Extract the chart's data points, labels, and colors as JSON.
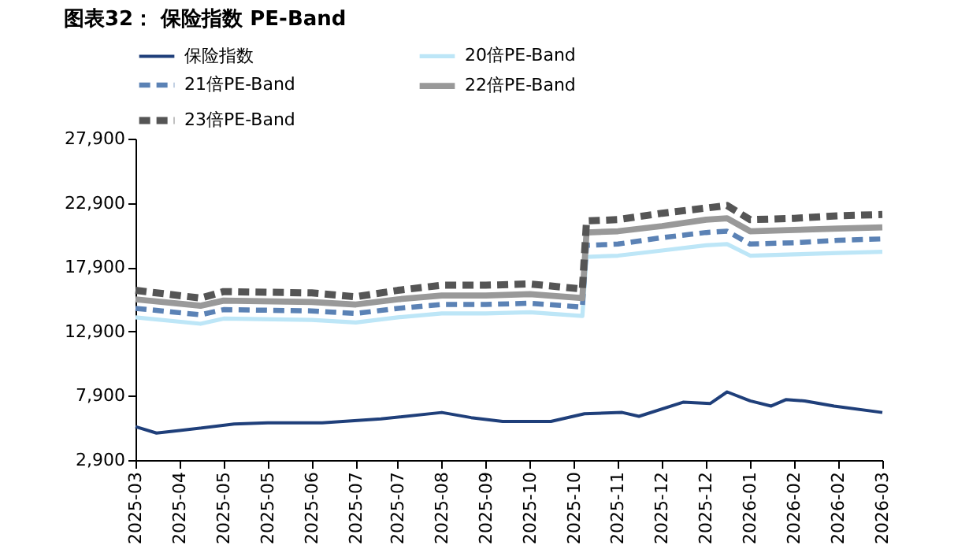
{
  "chart_data": {
    "type": "line",
    "title": "图表32： 保险指数 PE-Band",
    "xlim": [
      "2025-03-28",
      "2026-03-19"
    ],
    "xticks": [
      {
        "value": "2025-03-28",
        "label": "2025-03"
      },
      {
        "value": "2025-04-18",
        "label": "2025-04"
      },
      {
        "value": "2025-05-09",
        "label": "2025-05"
      },
      {
        "value": "2025-05-30",
        "label": "2025-05"
      },
      {
        "value": "2025-06-20",
        "label": "2025-06"
      },
      {
        "value": "2025-07-11",
        "label": "2025-07"
      },
      {
        "value": "2025-07-31",
        "label": "2025-07"
      },
      {
        "value": "2025-08-21",
        "label": "2025-08"
      },
      {
        "value": "2025-09-11",
        "label": "2025-09"
      },
      {
        "value": "2025-10-02",
        "label": "2025-10"
      },
      {
        "value": "2025-10-23",
        "label": "2025-10"
      },
      {
        "value": "2025-11-13",
        "label": "2025-11"
      },
      {
        "value": "2025-12-04",
        "label": "2025-12"
      },
      {
        "value": "2025-12-25",
        "label": "2025-12"
      },
      {
        "value": "2026-01-15",
        "label": "2026-01"
      },
      {
        "value": "2026-02-05",
        "label": "2026-02"
      },
      {
        "value": "2026-02-26",
        "label": "2026-02"
      },
      {
        "value": "2026-03-19",
        "label": "2026-03"
      }
    ],
    "ylim": [
      2900,
      27900
    ],
    "yticks": [
      {
        "value": 2900,
        "label": "2,900"
      },
      {
        "value": 7900,
        "label": "7,900"
      },
      {
        "value": 12900,
        "label": "12,900"
      },
      {
        "value": 17900,
        "label": "17,900"
      },
      {
        "value": 22900,
        "label": "22,900"
      },
      {
        "value": 27900,
        "label": "27,900"
      }
    ],
    "grid": false,
    "legend": "top",
    "marker": "none",
    "series": [
      {
        "name": "保险指数",
        "color": "#1f3f7a",
        "line_style": "solid",
        "x": [
          "2025-03-28",
          "2025-04-07",
          "2025-04-18",
          "2025-05-14",
          "2025-05-30",
          "2025-06-25",
          "2025-07-23",
          "2025-08-21",
          "2025-09-04",
          "2025-09-19",
          "2025-10-12",
          "2025-10-28",
          "2025-11-15",
          "2025-11-23",
          "2025-12-14",
          "2025-12-27",
          "2026-01-04",
          "2026-01-15",
          "2026-01-25",
          "2026-02-01",
          "2026-02-10",
          "2026-02-24",
          "2026-03-19"
        ],
        "values": [
          5500,
          5000,
          5200,
          5700,
          5800,
          5800,
          6100,
          6600,
          6200,
          5900,
          5900,
          6500,
          6600,
          6300,
          7400,
          7300,
          8200,
          7500,
          7100,
          7600,
          7500,
          7100,
          6600
        ]
      },
      {
        "name": "20倍PE-Band",
        "color": "#bde6f7",
        "line_style": "solid",
        "x": [
          "2025-03-28",
          "2025-04-28",
          "2025-05-09",
          "2025-06-20",
          "2025-07-11",
          "2025-07-31",
          "2025-08-21",
          "2025-09-11",
          "2025-10-02",
          "2025-10-27",
          "2025-10-29",
          "2025-11-13",
          "2025-12-04",
          "2025-12-25",
          "2026-01-04",
          "2026-01-15",
          "2026-02-05",
          "2026-02-26",
          "2026-03-19"
        ],
        "values": [
          14000,
          13500,
          13900,
          13800,
          13600,
          14000,
          14300,
          14300,
          14400,
          14100,
          18700,
          18800,
          19200,
          19600,
          19700,
          18800,
          18900,
          19000,
          19100
        ]
      },
      {
        "name": "21倍PE-Band",
        "color": "#5b82b5",
        "line_style": "dashed",
        "x": [
          "2025-03-28",
          "2025-04-28",
          "2025-05-09",
          "2025-06-20",
          "2025-07-11",
          "2025-07-31",
          "2025-08-21",
          "2025-09-11",
          "2025-10-02",
          "2025-10-27",
          "2025-10-29",
          "2025-11-13",
          "2025-12-04",
          "2025-12-25",
          "2026-01-04",
          "2026-01-15",
          "2026-02-05",
          "2026-02-26",
          "2026-03-19"
        ],
        "values": [
          14700,
          14200,
          14600,
          14500,
          14300,
          14700,
          15000,
          15000,
          15100,
          14800,
          19600,
          19700,
          20200,
          20600,
          20700,
          19700,
          19800,
          20000,
          20100
        ]
      },
      {
        "name": "22倍PE-Band",
        "color": "#999999",
        "line_style": "solid",
        "x": [
          "2025-03-28",
          "2025-04-28",
          "2025-05-09",
          "2025-06-20",
          "2025-07-11",
          "2025-07-31",
          "2025-08-21",
          "2025-09-11",
          "2025-10-02",
          "2025-10-27",
          "2025-10-29",
          "2025-11-13",
          "2025-12-04",
          "2025-12-25",
          "2026-01-04",
          "2026-01-15",
          "2026-02-05",
          "2026-02-26",
          "2026-03-19"
        ],
        "values": [
          15400,
          14900,
          15300,
          15200,
          15000,
          15400,
          15700,
          15700,
          15800,
          15500,
          20600,
          20700,
          21100,
          21600,
          21700,
          20700,
          20800,
          20900,
          21000
        ]
      },
      {
        "name": "23倍PE-Band",
        "color": "#555555",
        "line_style": "dashed",
        "x": [
          "2025-03-28",
          "2025-04-28",
          "2025-05-09",
          "2025-06-20",
          "2025-07-11",
          "2025-07-31",
          "2025-08-21",
          "2025-09-11",
          "2025-10-02",
          "2025-10-27",
          "2025-10-29",
          "2025-11-13",
          "2025-12-04",
          "2025-12-25",
          "2026-01-04",
          "2026-01-15",
          "2026-02-05",
          "2026-02-26",
          "2026-03-19"
        ],
        "values": [
          16100,
          15500,
          16000,
          15900,
          15600,
          16100,
          16500,
          16500,
          16600,
          16200,
          21500,
          21600,
          22100,
          22500,
          22700,
          21600,
          21700,
          21900,
          22000
        ]
      }
    ]
  }
}
